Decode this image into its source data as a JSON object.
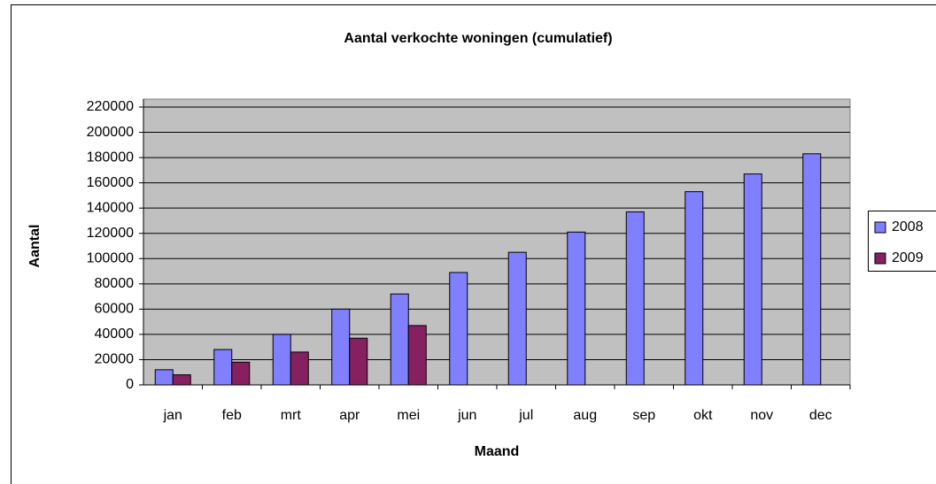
{
  "chart_data": {
    "type": "bar",
    "title": "Aantal verkochte woningen (cumulatief)",
    "x_label": "Maand",
    "y_label": "Aantal",
    "categories": [
      "jan",
      "feb",
      "mrt",
      "apr",
      "mei",
      "jun",
      "jul",
      "aug",
      "sep",
      "okt",
      "nov",
      "dec"
    ],
    "series": [
      {
        "name": "2008",
        "color": "#8080ff",
        "values": [
          12000,
          28000,
          40000,
          60000,
          72000,
          89000,
          105000,
          121000,
          137000,
          153000,
          167000,
          183000
        ]
      },
      {
        "name": "2009",
        "color": "#862060",
        "values": [
          8000,
          18000,
          26000,
          37000,
          47000,
          null,
          null,
          null,
          null,
          null,
          null,
          null
        ]
      }
    ],
    "ylim": [
      0,
      220000
    ],
    "yticks": [
      0,
      20000,
      40000,
      60000,
      80000,
      100000,
      120000,
      140000,
      160000,
      180000,
      200000,
      220000
    ],
    "grid": true,
    "legend": "right"
  }
}
